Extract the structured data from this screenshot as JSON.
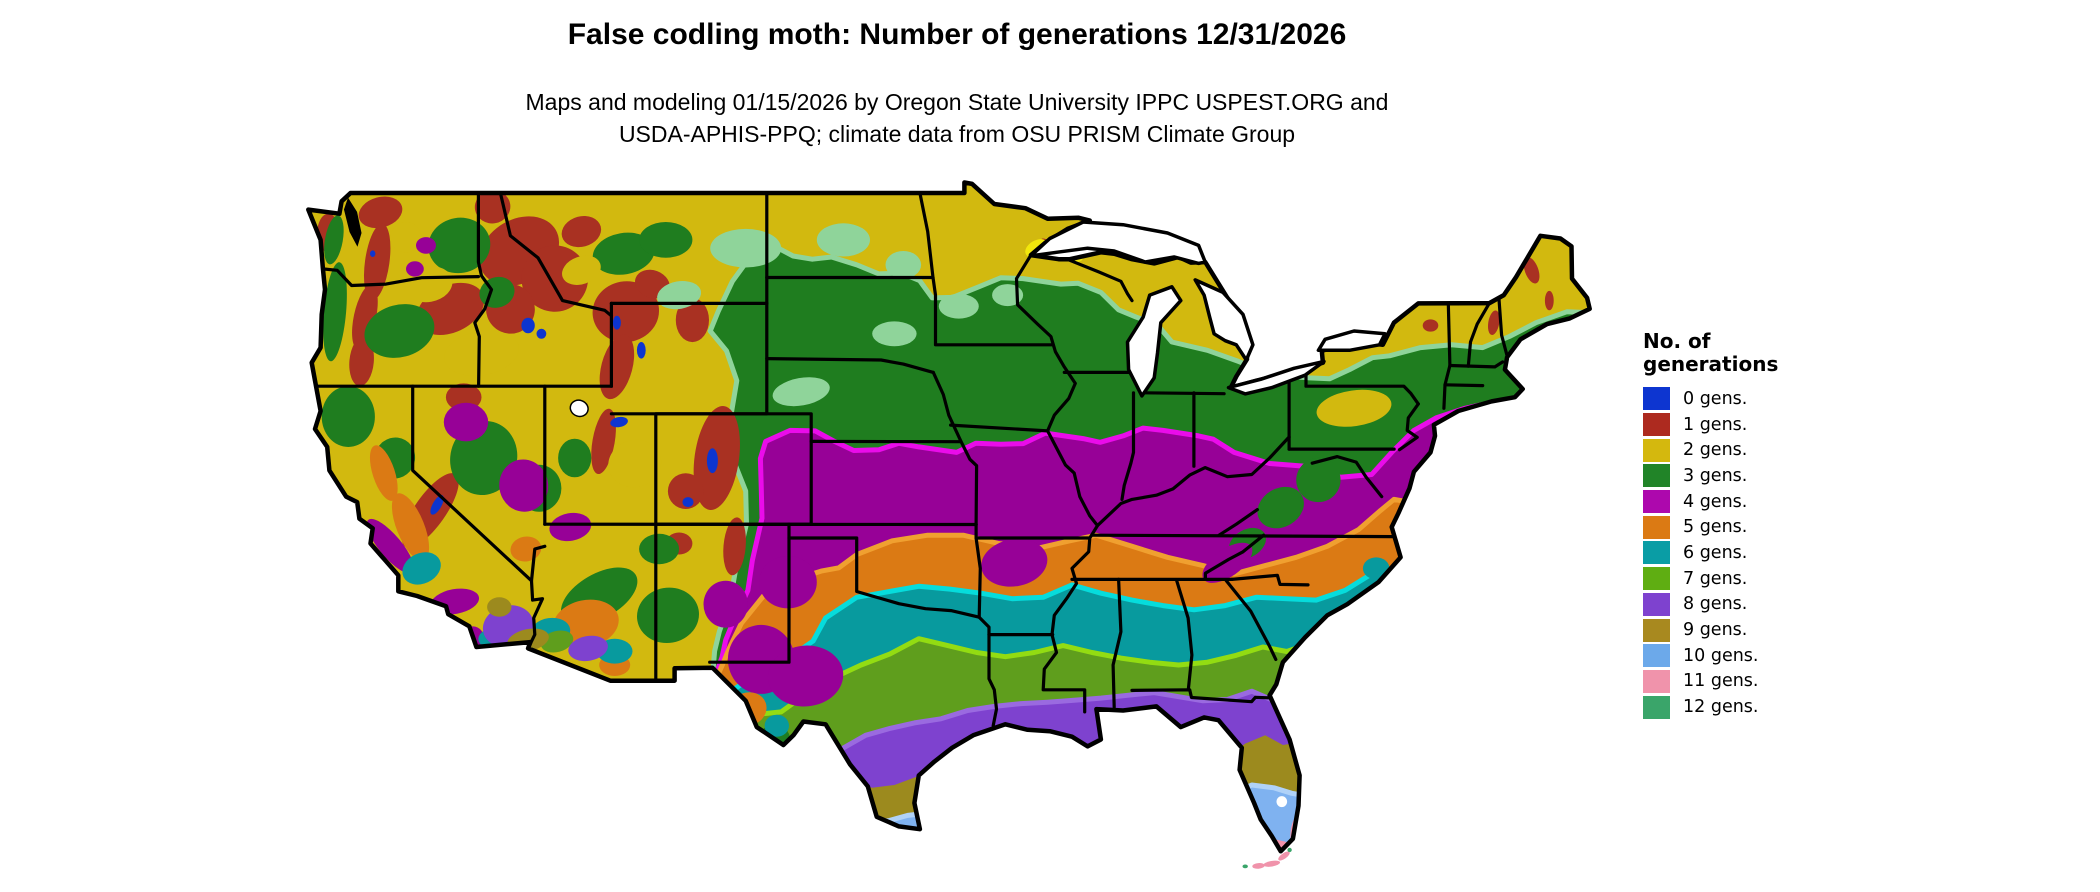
{
  "header": {
    "title": "False codling moth: Number of generations 12/31/2026",
    "subtitle_line1": "Maps and modeling 01/15/2026 by Oregon State University IPPC USPEST.ORG and",
    "subtitle_line2": "USDA-APHIS-PPQ; climate data from OSU PRISM Climate Group"
  },
  "legend": {
    "title_line1": "No. of",
    "title_line2": "generations",
    "items": [
      {
        "label": "0 gens.",
        "color": "#0d35d0"
      },
      {
        "label": "1 gens.",
        "color": "#ad2a1f"
      },
      {
        "label": "2 gens.",
        "color": "#d4b80e"
      },
      {
        "label": "3 gens.",
        "color": "#218428"
      },
      {
        "label": "4 gens.",
        "color": "#ad08ad"
      },
      {
        "label": "5 gens.",
        "color": "#db7a14"
      },
      {
        "label": "6 gens.",
        "color": "#0a9da5"
      },
      {
        "label": "7 gens.",
        "color": "#5fae12"
      },
      {
        "label": "8 gens.",
        "color": "#7e42cf"
      },
      {
        "label": "9 gens.",
        "color": "#a8891f"
      },
      {
        "label": "10 gens.",
        "color": "#6ca9ea"
      },
      {
        "label": "11 gens.",
        "color": "#f093ab"
      },
      {
        "label": "12 gens.",
        "color": "#3aa56a"
      }
    ]
  },
  "map": {
    "background": "#ffffff",
    "border_color": "#000000",
    "water_color": "#ffffff",
    "band_fills": {
      "0": "#0d35d0",
      "1": "#a93122",
      "2": "#d2b90f",
      "3": "#1f7d1f",
      "4": "#970197",
      "5": "#db7a14",
      "6": "#089a9e",
      "7": "#5f9e1d",
      "8": "#7e42cf",
      "9": "#9c8a1e",
      "10": "#7fb2f0",
      "11": "#f093ab",
      "12": "#3aa56a"
    },
    "fringe_colors": {
      "3": "#8fd49a",
      "4": "#ea0cea",
      "5": "#f0a030",
      "6": "#06dcdc",
      "7": "#93dc12",
      "8": "#9a6ae0",
      "10": "#b0d2f8"
    },
    "extra_colors": {
      "pg": "#8fd49a",
      "yb": "#f2e70c",
      "w": "#ffffff",
      "k": "#000000"
    }
  }
}
